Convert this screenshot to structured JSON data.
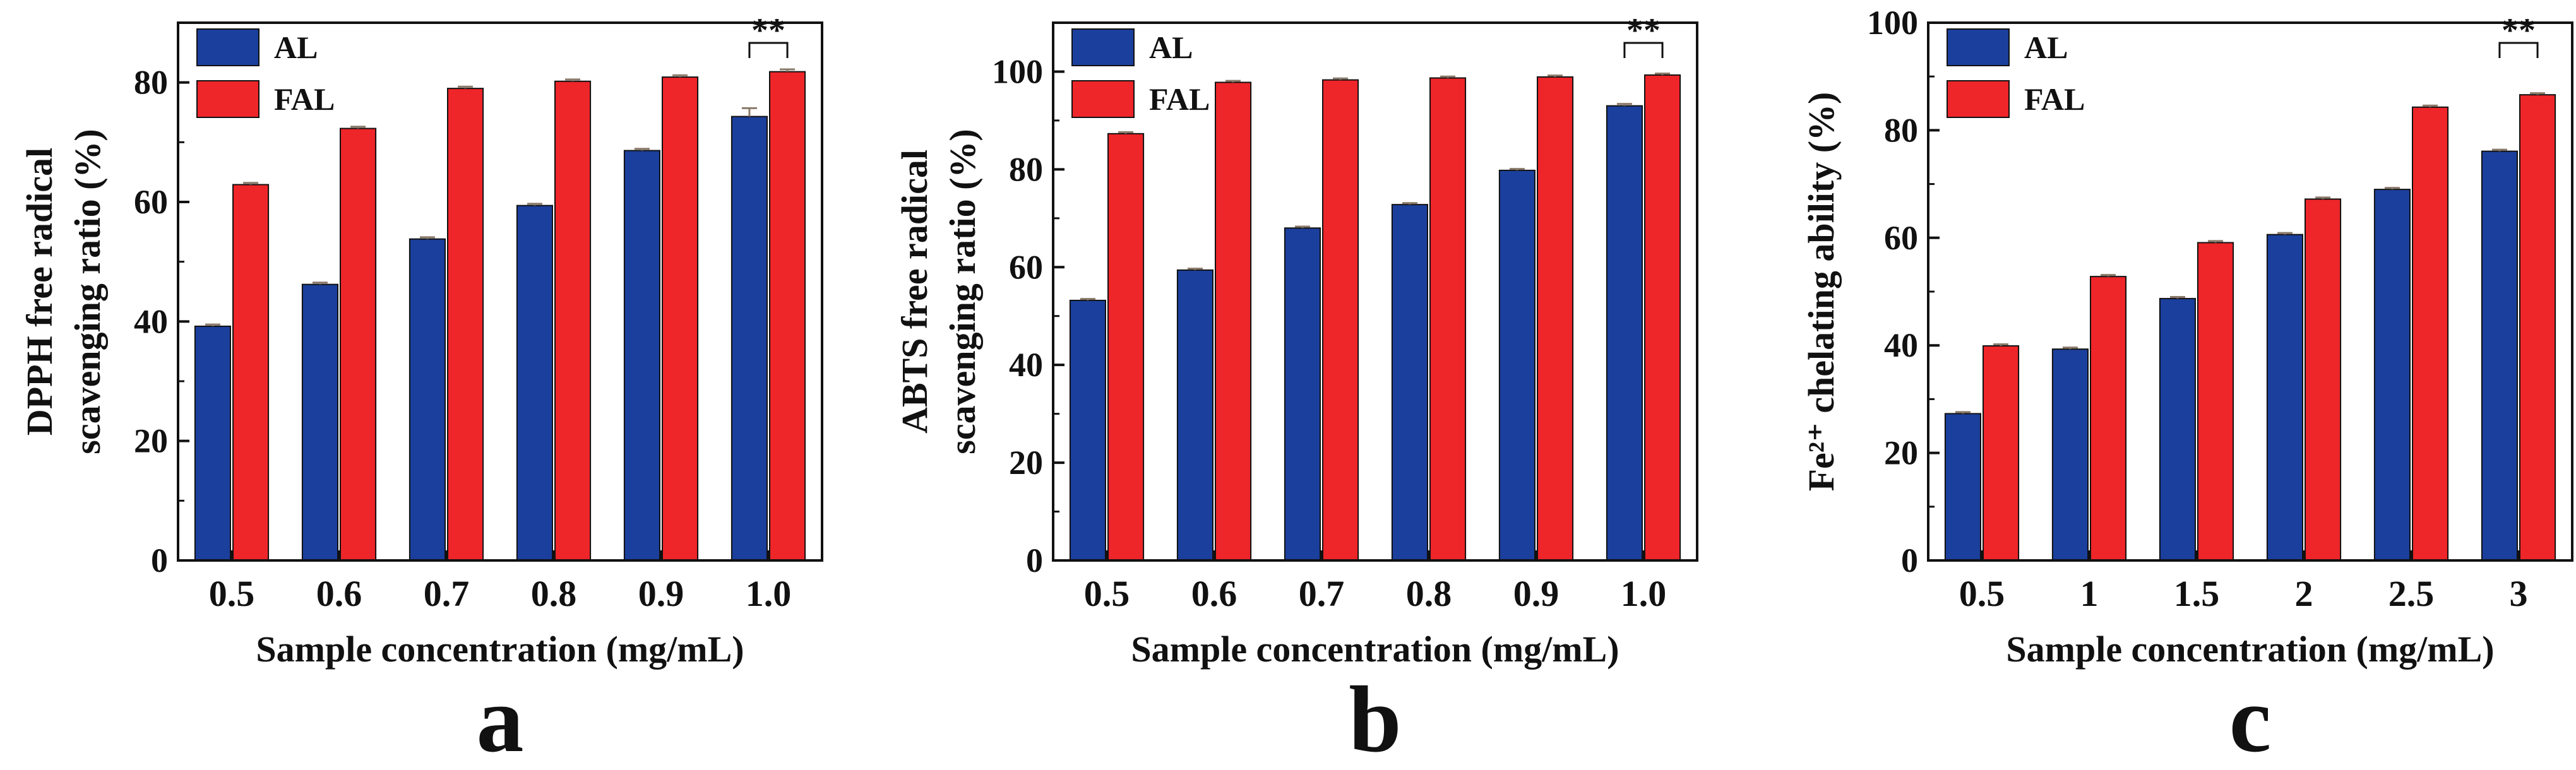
{
  "chart_data": [
    {
      "type": "bar",
      "panel_label": "a",
      "ylabel_lines": [
        "DPPH free radical",
        "scavenging ratio (%)"
      ],
      "xlabel": "Sample concentration (mg/mL)",
      "categories": [
        "0.5",
        "0.6",
        "0.7",
        "0.8",
        "0.9",
        "1.0"
      ],
      "ylim": [
        0,
        90
      ],
      "yticks": [
        0,
        20,
        40,
        60,
        80
      ],
      "series": [
        {
          "name": "AL",
          "values": [
            39.2,
            46.2,
            53.8,
            59.4,
            68.6,
            74.3
          ],
          "errors": [
            0.3,
            0.3,
            0.3,
            0.3,
            0.3,
            1.4
          ]
        },
        {
          "name": "FAL",
          "values": [
            62.9,
            72.3,
            79.0,
            80.2,
            80.9,
            81.8
          ],
          "errors": [
            0.3,
            0.3,
            0.3,
            0.3,
            0.3,
            0.4
          ]
        }
      ],
      "annotation": {
        "text": "**",
        "category_index": 5
      }
    },
    {
      "type": "bar",
      "panel_label": "b",
      "ylabel_lines": [
        "ABTS free radical",
        "scavenging ratio (%)"
      ],
      "xlabel": "Sample concentration (mg/mL)",
      "categories": [
        "0.5",
        "0.6",
        "0.7",
        "0.8",
        "0.9",
        "1.0"
      ],
      "ylim": [
        0,
        110
      ],
      "yticks": [
        0,
        20,
        40,
        60,
        80,
        100
      ],
      "series": [
        {
          "name": "AL",
          "values": [
            53.2,
            59.4,
            68.0,
            72.8,
            79.8,
            93.0
          ],
          "errors": [
            0.3,
            0.3,
            0.3,
            0.3,
            0.3,
            0.4
          ]
        },
        {
          "name": "FAL",
          "values": [
            87.3,
            97.8,
            98.3,
            98.7,
            98.9,
            99.3
          ],
          "errors": [
            0.3,
            0.3,
            0.3,
            0.3,
            0.3,
            0.3
          ]
        }
      ],
      "annotation": {
        "text": "**",
        "category_index": 5
      }
    },
    {
      "type": "bar",
      "panel_label": "c",
      "ylabel_lines": [
        "Fe²⁺ chelating ability (%)"
      ],
      "xlabel": "Sample concentration (mg/mL)",
      "categories": [
        "0.5",
        "1",
        "1.5",
        "2",
        "2.5",
        "3"
      ],
      "ylim": [
        0,
        100
      ],
      "yticks": [
        0,
        20,
        40,
        60,
        80,
        100
      ],
      "series": [
        {
          "name": "AL",
          "values": [
            27.3,
            39.3,
            48.7,
            60.6,
            69.0,
            76.1
          ],
          "errors": [
            0.3,
            0.3,
            0.3,
            0.3,
            0.3,
            0.3
          ]
        },
        {
          "name": "FAL",
          "values": [
            39.9,
            52.8,
            59.1,
            67.2,
            84.3,
            86.6
          ],
          "errors": [
            0.3,
            0.3,
            0.3,
            0.3,
            0.3,
            0.3
          ]
        }
      ],
      "annotation": {
        "text": "**",
        "category_index": 5
      }
    }
  ],
  "colors": {
    "AL": "#1b3f9c",
    "FAL": "#ee2529",
    "error": "#8a7a6a",
    "axis": "#111111"
  }
}
